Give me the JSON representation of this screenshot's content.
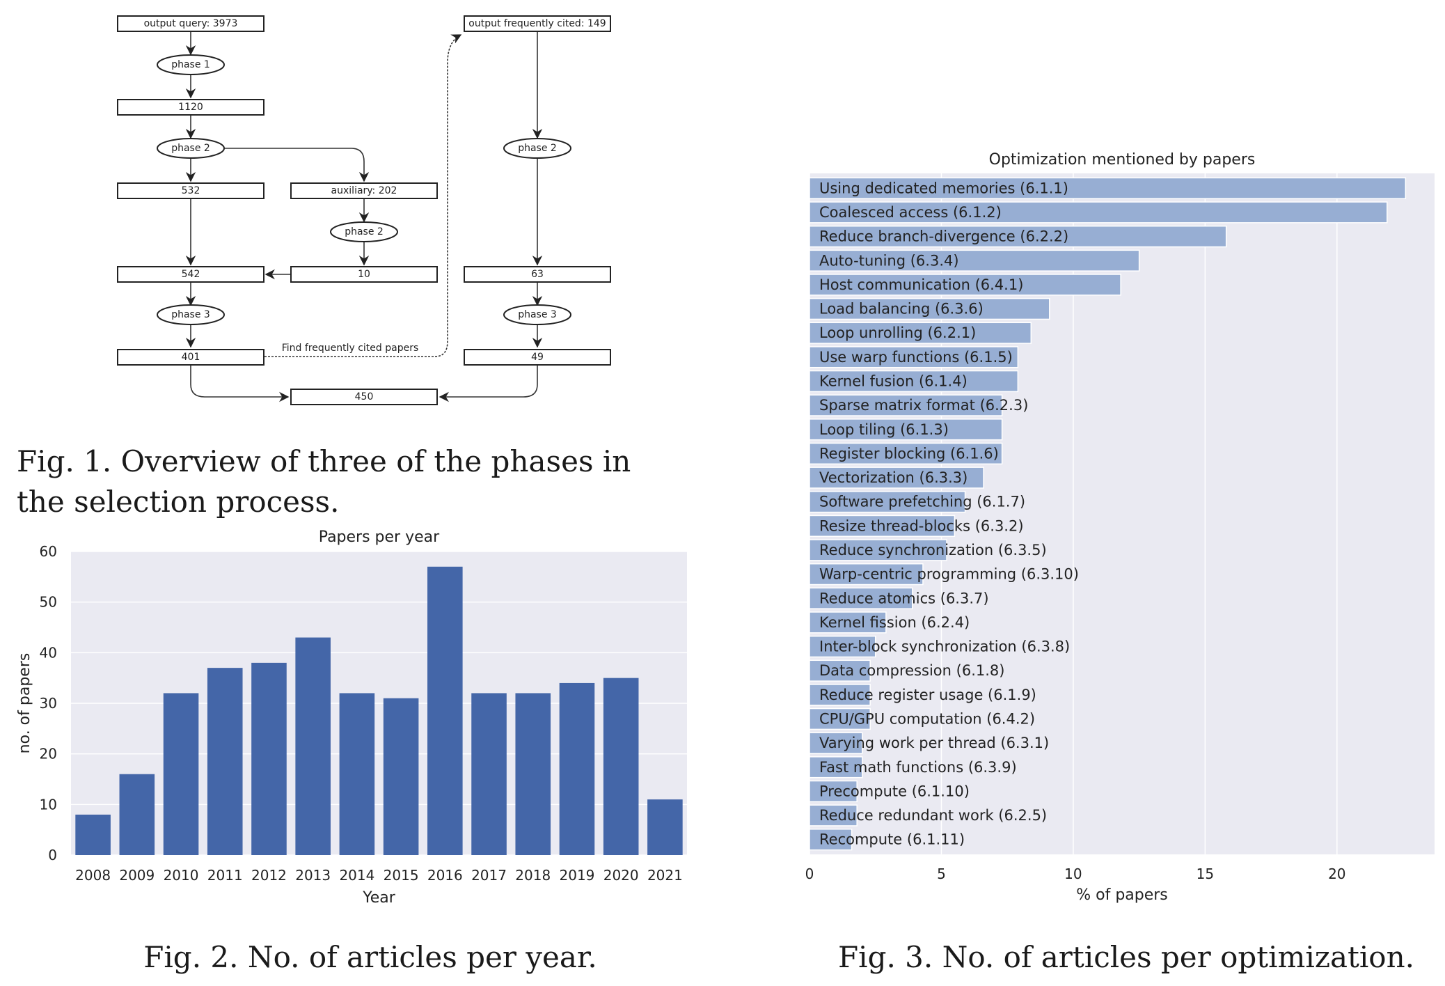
{
  "figure1": {
    "nodes": {
      "query": "output  query: 3973",
      "phase1": "phase 1",
      "n1120": "1120",
      "phase2_left": "phase 2",
      "n532": "532",
      "auxiliary": "auxiliary: 202",
      "phase2_mid": "phase 2",
      "n542": "542",
      "n10": "10",
      "phase3_left": "phase 3",
      "n401": "401",
      "n450": "450",
      "cited": "output  frequently cited: 149",
      "phase2_right": "phase 2",
      "n63": "63",
      "phase3_right": "phase 3",
      "n49": "49"
    },
    "edge_label": "Find frequently cited papers",
    "caption": "Fig. 1.  Overview of three of the phases in the selection process."
  },
  "figure2": {
    "caption": "Fig. 2.  No. of articles per year.",
    "chart_data": {
      "type": "bar",
      "title": "Papers per year",
      "xlabel": "Year",
      "ylabel": "no. of papers",
      "categories": [
        "2008",
        "2009",
        "2010",
        "2011",
        "2012",
        "2013",
        "2014",
        "2015",
        "2016",
        "2017",
        "2018",
        "2019",
        "2020",
        "2021"
      ],
      "values": [
        8,
        16,
        32,
        37,
        38,
        43,
        32,
        31,
        57,
        32,
        32,
        34,
        35,
        11
      ],
      "ylim": [
        0,
        60
      ],
      "yticks": [
        0,
        10,
        20,
        30,
        40,
        50,
        60
      ],
      "grid": true,
      "color": "#4466a8",
      "background": "#eaeaf2"
    }
  },
  "figure3": {
    "caption": "Fig. 3.  No. of articles per optimization.",
    "chart_data": {
      "type": "bar",
      "orientation": "horizontal",
      "title": "Optimization mentioned by papers",
      "xlabel": "% of papers",
      "categories": [
        "Using dedicated memories (6.1.1)",
        "Coalesced access (6.1.2)",
        "Reduce branch-divergence (6.2.2)",
        "Auto-tuning (6.3.4)",
        "Host communication (6.4.1)",
        "Load balancing (6.3.6)",
        "Loop unrolling (6.2.1)",
        "Use warp functions (6.1.5)",
        "Kernel fusion (6.1.4)",
        "Sparse matrix format (6.2.3)",
        "Loop tiling (6.1.3)",
        "Register blocking (6.1.6)",
        "Vectorization (6.3.3)",
        "Software prefetching (6.1.7)",
        "Resize thread-blocks (6.3.2)",
        "Reduce synchronization (6.3.5)",
        "Warp-centric programming (6.3.10)",
        "Reduce atomics (6.3.7)",
        "Kernel fission (6.2.4)",
        "Inter-block synchronization (6.3.8)",
        "Data compression (6.1.8)",
        "Reduce register usage (6.1.9)",
        "CPU/GPU computation (6.4.2)",
        "Varying work per thread (6.3.1)",
        "Fast math functions (6.3.9)",
        "Precompute (6.1.10)",
        "Reduce redundant work (6.2.5)",
        "Recompute (6.1.11)"
      ],
      "values": [
        22.6,
        21.9,
        15.8,
        12.5,
        11.8,
        9.1,
        8.4,
        7.9,
        7.9,
        7.3,
        7.3,
        7.3,
        6.6,
        5.9,
        5.5,
        5.2,
        4.3,
        3.9,
        2.9,
        2.5,
        2.3,
        2.3,
        2.3,
        2.0,
        2.0,
        1.8,
        1.8,
        1.6
      ],
      "xlim": [
        0,
        23.7
      ],
      "xticks": [
        0,
        5,
        10,
        15,
        20
      ],
      "grid": true,
      "color": "#97aed3",
      "background": "#eaeaf2"
    }
  }
}
